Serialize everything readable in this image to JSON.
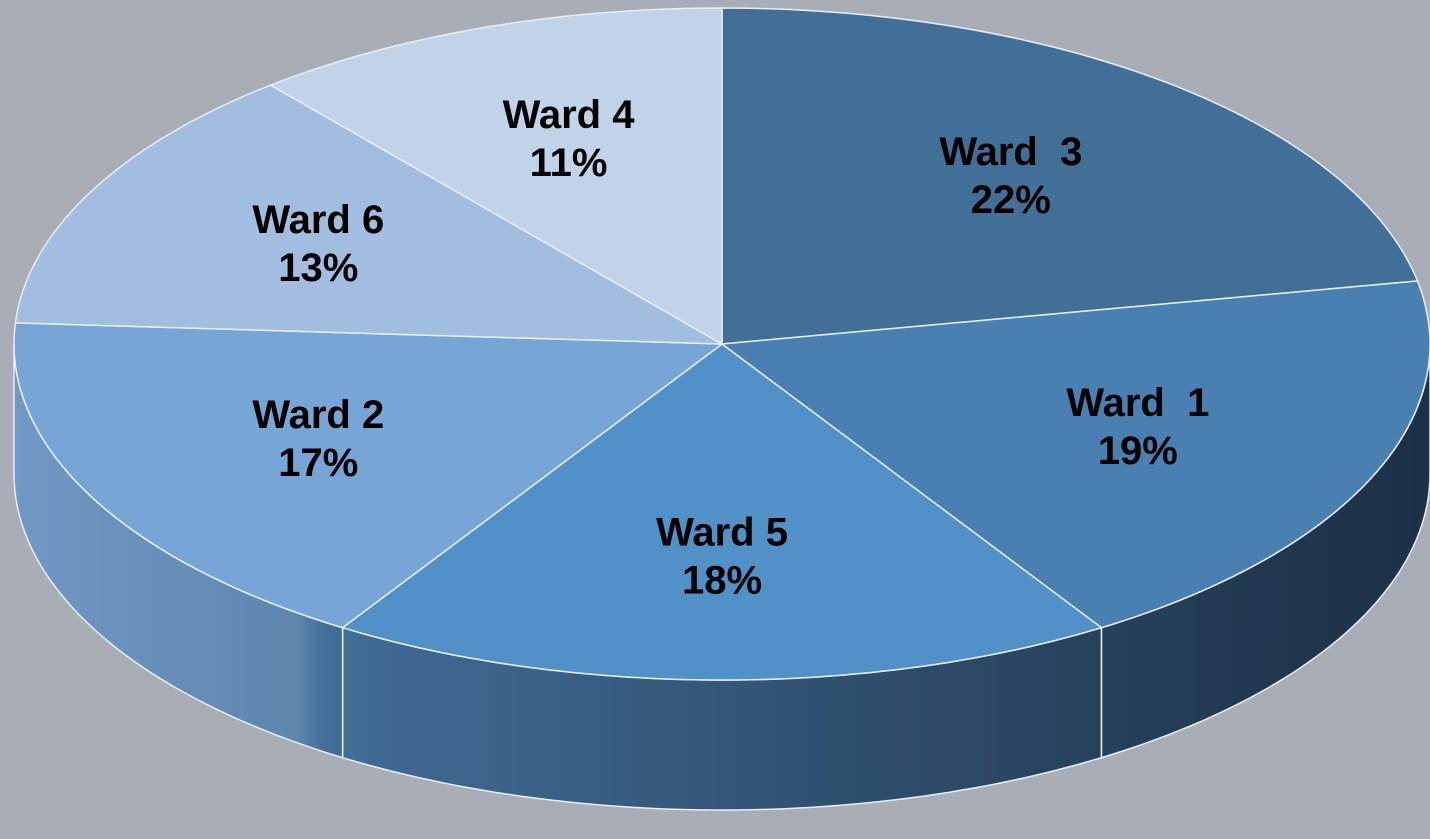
{
  "chart_data": {
    "type": "pie",
    "categories": [
      "Ward  3",
      "Ward  1",
      "Ward 5",
      "Ward 2",
      "Ward 6",
      "Ward 4"
    ],
    "values": [
      22,
      19,
      18,
      17,
      13,
      11
    ],
    "value_labels": [
      "22%",
      "19%",
      "18%",
      "17%",
      "13%",
      "11%"
    ],
    "colors": [
      "#426f98",
      "#4a7fb2",
      "#5290c8",
      "#77a5d5",
      "#a1bde0",
      "#c0d3e9"
    ]
  }
}
